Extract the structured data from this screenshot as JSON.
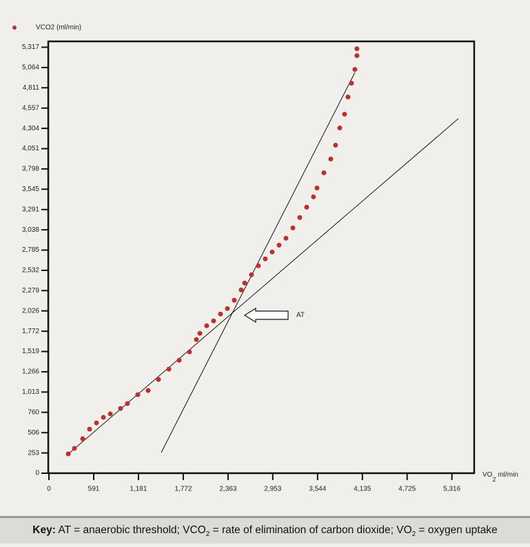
{
  "chart_data": {
    "type": "scatter",
    "x_label": [
      "VO",
      "2",
      "ml/min"
    ],
    "annotation": "AT",
    "xlim": [
      0,
      5610
    ],
    "ylim": [
      0,
      5390
    ],
    "xticks": [
      0,
      591,
      {
        "value": 1181,
        "label": "1,181"
      },
      {
        "value": 1772,
        "label": "1,772"
      },
      {
        "value": 2363,
        "label": "2,363"
      },
      {
        "value": 2953,
        "label": "2,953"
      },
      {
        "value": 3544,
        "label": "3,544"
      },
      {
        "value": 4135,
        "label": "4,135"
      },
      {
        "value": 4725,
        "label": "4,725"
      },
      {
        "value": 5316,
        "label": "5,316"
      }
    ],
    "yticks": [
      0,
      253,
      506,
      760,
      {
        "value": 1013,
        "label": "1,013"
      },
      {
        "value": 1266,
        "label": "1,266"
      },
      {
        "value": 1519,
        "label": "1,519"
      },
      {
        "value": 1772,
        "label": "1,772"
      },
      {
        "value": 2026,
        "label": "2,026"
      },
      {
        "value": 2279,
        "label": "2,279"
      },
      {
        "value": 2532,
        "label": "2,532"
      },
      {
        "value": 2785,
        "label": "2,785"
      },
      {
        "value": 3038,
        "label": "3,038"
      },
      {
        "value": 3291,
        "label": "3,291"
      },
      {
        "value": 3545,
        "label": "3,545"
      },
      {
        "value": 3798,
        "label": "3,798"
      },
      {
        "value": 4051,
        "label": "4,051"
      },
      {
        "value": 4304,
        "label": "4,304"
      },
      {
        "value": 4557,
        "label": "4,557"
      },
      {
        "value": 4811,
        "label": "4,811"
      },
      {
        "value": 5064,
        "label": "5,064"
      },
      {
        "value": 5317,
        "label": "5,317"
      }
    ],
    "series": [
      {
        "name": "VCO2 (ml/min)",
        "color": "#b83232",
        "x": [
          255,
          336,
          445,
          536,
          627,
          718,
          809,
          945,
          1036,
          1172,
          1309,
          1445,
          1582,
          1718,
          1854,
          1945,
          1991,
          2081,
          2172,
          2263,
          2354,
          2445,
          2536,
          2582,
          2672,
          2763,
          2854,
          2945,
          3036,
          3127,
          3218,
          3309,
          3400,
          3490,
          3536,
          3627,
          3718,
          3781,
          3836,
          3900,
          3945,
          3991,
          4036,
          4063,
          4063
        ],
        "values": [
          241,
          310,
          430,
          550,
          628,
          697,
          740,
          808,
          869,
          980,
          1032,
          1170,
          1299,
          1410,
          1514,
          1668,
          1746,
          1840,
          1901,
          1987,
          2055,
          2159,
          2288,
          2374,
          2477,
          2589,
          2675,
          2761,
          2847,
          2933,
          3062,
          3191,
          3320,
          3449,
          3560,
          3750,
          3922,
          4094,
          4309,
          4481,
          4696,
          4868,
          5040,
          5212,
          5298
        ]
      }
    ]
  },
  "key": {
    "label": "Key:",
    "parts": [
      " AT = anaerobic threshold; VCO",
      "2",
      " = rate of elimination of carbon dioxide; VO",
      "2",
      " = oxygen uptake"
    ]
  }
}
